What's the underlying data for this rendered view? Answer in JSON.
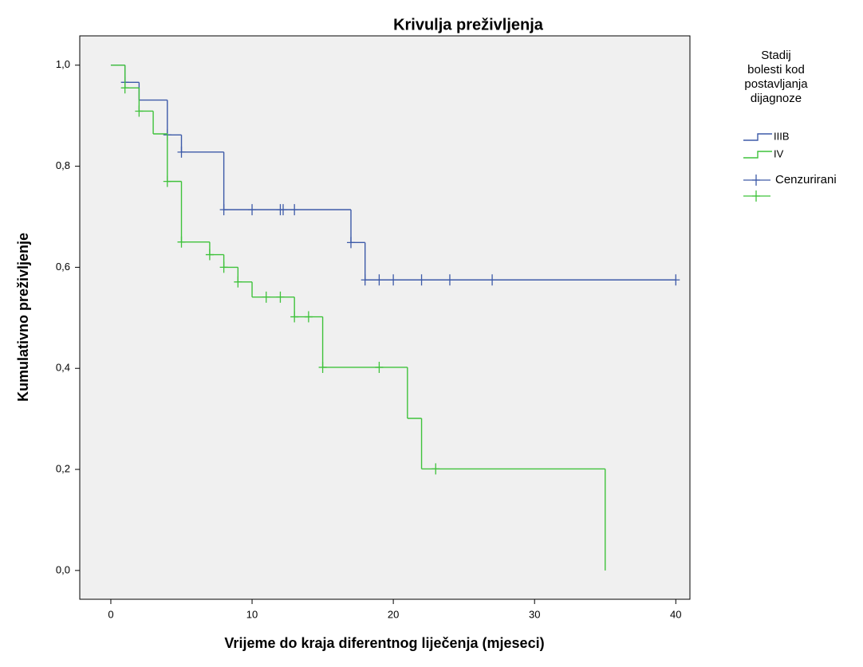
{
  "chart_data": {
    "type": "step",
    "title": "Krivulja preživljenja",
    "x_label": "Vrijeme do kraja diferentnog liječenja (mjeseci)",
    "y_label": "Kumulativno preživljenje",
    "legend_title": [
      "Stadij",
      "bolesti kod",
      "postavljanja",
      "dijagnoze"
    ],
    "censored_label": "Cenzurirani",
    "xlim": [
      -2.2,
      41
    ],
    "ylim": [
      -0.057,
      1.058
    ],
    "xticks": [
      0,
      10,
      20,
      30,
      40
    ],
    "yticks": [
      {
        "value": 0,
        "label": "0,0"
      },
      {
        "value": 0.2,
        "label": "0,2"
      },
      {
        "value": 0.4,
        "label": "0,4"
      },
      {
        "value": 0.6,
        "label": "0,6"
      },
      {
        "value": 0.8,
        "label": "0,8"
      },
      {
        "value": 1,
        "label": "1,0"
      }
    ],
    "series": [
      {
        "name": "IIIB",
        "color": "#3d5aa8",
        "x": [
          0,
          1,
          2,
          4,
          5,
          8,
          17,
          18,
          40
        ],
        "values": [
          1,
          0.966,
          0.931,
          0.862,
          0.828,
          0.714,
          0.649,
          0.575,
          0.575
        ],
        "censored_x": [
          1,
          4,
          5,
          8,
          10,
          12,
          12.2,
          13,
          17,
          18,
          19,
          20,
          22,
          24,
          27,
          40
        ],
        "censored_values": [
          0.966,
          0.862,
          0.828,
          0.714,
          0.714,
          0.714,
          0.714,
          0.714,
          0.649,
          0.575,
          0.575,
          0.575,
          0.575,
          0.575,
          0.575,
          0.575
        ]
      },
      {
        "name": "IV",
        "color": "#3fc23b",
        "x": [
          0,
          1,
          2,
          3,
          4,
          5,
          7,
          8,
          9,
          10,
          13,
          15,
          21,
          22,
          35
        ],
        "values": [
          1,
          0.955,
          0.909,
          0.864,
          0.77,
          0.65,
          0.625,
          0.6,
          0.571,
          0.541,
          0.502,
          0.402,
          0.301,
          0.201,
          0
        ],
        "censored_x": [
          1,
          2,
          4,
          5,
          7,
          8,
          9,
          11,
          12,
          13,
          14,
          15,
          19,
          23
        ],
        "censored_values": [
          0.955,
          0.909,
          0.77,
          0.65,
          0.625,
          0.6,
          0.571,
          0.541,
          0.541,
          0.502,
          0.502,
          0.402,
          0.402,
          0.201
        ]
      }
    ]
  }
}
